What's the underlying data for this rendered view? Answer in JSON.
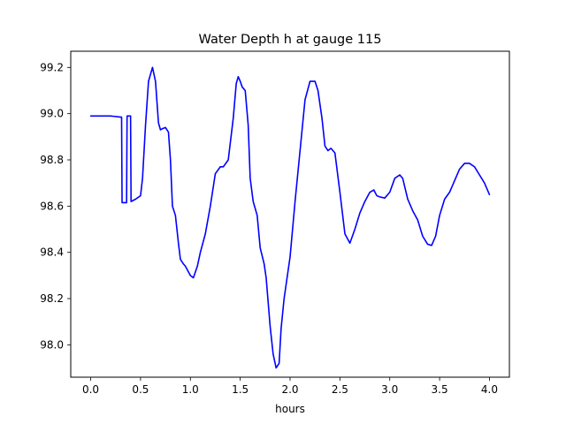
{
  "chart_data": {
    "type": "line",
    "title": "Water Depth h at gauge 115",
    "xlabel": "hours",
    "ylabel": "",
    "xlim": [
      -0.2,
      4.2
    ],
    "ylim": [
      97.86,
      99.27
    ],
    "xticks": [
      0.0,
      0.5,
      1.0,
      1.5,
      2.0,
      2.5,
      3.0,
      3.5,
      4.0
    ],
    "xtick_labels": [
      "0.0",
      "0.5",
      "1.0",
      "1.5",
      "2.0",
      "2.5",
      "3.0",
      "3.5",
      "4.0"
    ],
    "yticks": [
      98.0,
      98.2,
      98.4,
      98.6,
      98.8,
      99.0,
      99.2
    ],
    "ytick_labels": [
      "98.0",
      "98.2",
      "98.4",
      "98.6",
      "98.8",
      "99.0",
      "99.2"
    ],
    "grid": false,
    "series": [
      {
        "color": "#0000ff",
        "x": [
          0.0,
          0.1,
          0.2,
          0.3,
          0.31,
          0.315,
          0.36,
          0.365,
          0.4,
          0.405,
          0.45,
          0.5,
          0.52,
          0.55,
          0.58,
          0.62,
          0.65,
          0.68,
          0.7,
          0.72,
          0.75,
          0.78,
          0.8,
          0.82,
          0.85,
          0.88,
          0.9,
          0.93,
          0.95,
          1.0,
          1.03,
          1.07,
          1.1,
          1.15,
          1.2,
          1.25,
          1.3,
          1.33,
          1.38,
          1.43,
          1.46,
          1.48,
          1.5,
          1.52,
          1.55,
          1.58,
          1.6,
          1.63,
          1.67,
          1.7,
          1.74,
          1.76,
          1.8,
          1.83,
          1.86,
          1.89,
          1.91,
          1.94,
          1.96,
          2.0,
          2.05,
          2.1,
          2.15,
          2.2,
          2.25,
          2.28,
          2.32,
          2.35,
          2.38,
          2.41,
          2.45,
          2.5,
          2.55,
          2.6,
          2.65,
          2.7,
          2.75,
          2.8,
          2.84,
          2.87,
          2.9,
          2.95,
          3.0,
          3.05,
          3.1,
          3.13,
          3.18,
          3.23,
          3.28,
          3.33,
          3.38,
          3.42,
          3.46,
          3.5,
          3.55,
          3.6,
          3.65,
          3.7,
          3.75,
          3.8,
          3.85,
          3.9,
          3.95,
          4.0
        ],
        "y": [
          98.99,
          98.99,
          98.99,
          98.985,
          98.985,
          98.615,
          98.615,
          98.99,
          98.99,
          98.62,
          98.63,
          98.645,
          98.72,
          98.95,
          99.14,
          99.2,
          99.14,
          98.96,
          98.93,
          98.935,
          98.94,
          98.92,
          98.8,
          98.6,
          98.56,
          98.44,
          98.37,
          98.35,
          98.34,
          98.3,
          98.29,
          98.34,
          98.4,
          98.48,
          98.6,
          98.74,
          98.77,
          98.77,
          98.8,
          98.98,
          99.13,
          99.16,
          99.14,
          99.115,
          99.1,
          98.95,
          98.72,
          98.62,
          98.56,
          98.42,
          98.35,
          98.29,
          98.08,
          97.96,
          97.9,
          97.92,
          98.07,
          98.2,
          98.26,
          98.38,
          98.62,
          98.84,
          99.06,
          99.14,
          99.14,
          99.1,
          98.98,
          98.86,
          98.84,
          98.85,
          98.83,
          98.66,
          98.48,
          98.44,
          98.5,
          98.57,
          98.62,
          98.66,
          98.67,
          98.645,
          98.64,
          98.635,
          98.66,
          98.72,
          98.735,
          98.72,
          98.63,
          98.58,
          98.54,
          98.47,
          98.435,
          98.43,
          98.47,
          98.56,
          98.63,
          98.66,
          98.71,
          98.76,
          98.785,
          98.785,
          98.77,
          98.735,
          98.7,
          98.65
        ]
      }
    ]
  }
}
